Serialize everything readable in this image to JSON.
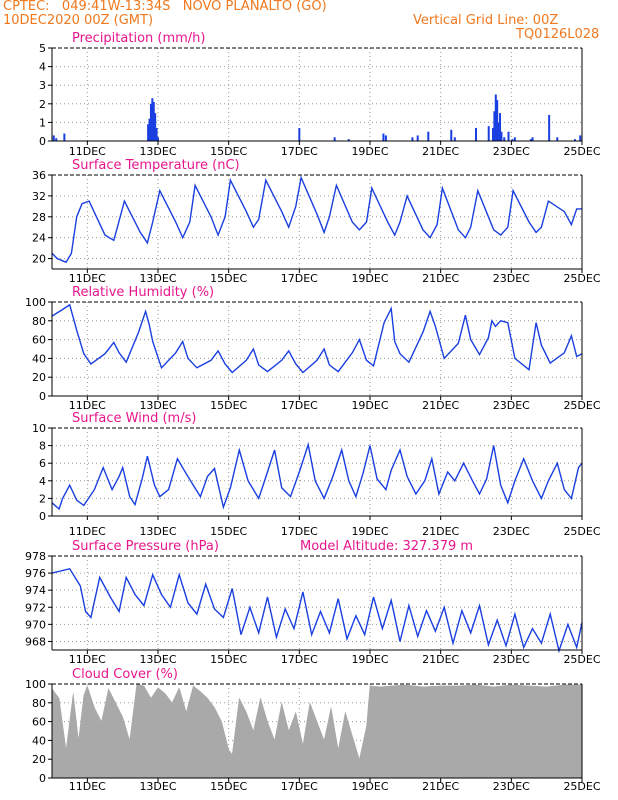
{
  "header": {
    "line1_left": "CPTEC:   049:41W-13:34S   NOVO PLANALTO (GO)",
    "line2_left": "10DEC2020 00Z (GMT)",
    "line2_right": "Vertical Grid Line: 00Z",
    "line3_right": "TQ0126L028"
  },
  "colors": {
    "header": "#f0781e",
    "title": "#e8168c",
    "line": "#1a3fe0",
    "bar": "#1a3fe0",
    "cloud": "#a9a9a9",
    "grid": "#999999"
  },
  "x_axis": {
    "ticks": [
      "11DEC",
      "13DEC",
      "15DEC",
      "17DEC",
      "19DEC",
      "21DEC",
      "23DEC",
      "25DEC"
    ],
    "tick_days": [
      1,
      3,
      5,
      7,
      9,
      11,
      13,
      15
    ],
    "start_date": "10DEC2020 00Z",
    "end_date": "25DEC2020 00Z"
  },
  "chart_data": [
    {
      "type": "bar",
      "title": "Precipitation (mm/h)",
      "ylim": [
        0,
        5
      ],
      "yticks": [
        "0",
        "1",
        "2",
        "3",
        "4",
        "5"
      ],
      "x": [
        0.05,
        0.12,
        0.35,
        2.72,
        2.76,
        2.8,
        2.84,
        2.88,
        2.92,
        2.96,
        3.0,
        7.0,
        8.0,
        8.4,
        9.38,
        9.45,
        10.2,
        10.35,
        10.65,
        11.3,
        11.4,
        12.0,
        12.36,
        12.48,
        12.52,
        12.56,
        12.6,
        12.64,
        12.68,
        12.72,
        12.8,
        12.92,
        13.03,
        13.1,
        13.55,
        13.6,
        14.07,
        14.3,
        14.8,
        14.95
      ],
      "values": [
        0.3,
        0.15,
        0.4,
        0.9,
        1.2,
        2.0,
        2.3,
        2.1,
        1.5,
        0.7,
        0.2,
        0.7,
        0.2,
        0.1,
        0.4,
        0.3,
        0.2,
        0.3,
        0.5,
        0.6,
        0.2,
        0.7,
        0.8,
        0.7,
        1.6,
        2.5,
        2.2,
        1.0,
        1.5,
        0.5,
        0.2,
        0.5,
        0.1,
        0.2,
        0.1,
        0.2,
        1.4,
        0.2,
        0.1,
        0.3
      ]
    },
    {
      "type": "line",
      "title": "Surface Temperature (nC)",
      "ylim": [
        18,
        36
      ],
      "yticks": [
        "20",
        "24",
        "28",
        "32",
        "36"
      ],
      "x": [
        0,
        0.15,
        0.4,
        0.55,
        0.7,
        0.85,
        1.05,
        1.5,
        1.75,
        1.85,
        2.05,
        2.5,
        2.7,
        2.85,
        3.05,
        3.5,
        3.7,
        3.9,
        4.05,
        4.5,
        4.7,
        4.9,
        5.05,
        5.5,
        5.7,
        5.85,
        6.05,
        6.5,
        6.7,
        6.9,
        7.05,
        7.5,
        7.7,
        7.85,
        8.05,
        8.5,
        8.7,
        8.9,
        9.05,
        9.5,
        9.7,
        9.85,
        10.05,
        10.5,
        10.7,
        10.9,
        11.05,
        11.5,
        11.7,
        11.85,
        12.05,
        12.5,
        12.7,
        12.9,
        13.05,
        13.5,
        13.7,
        13.85,
        14.05,
        14.5,
        14.7,
        14.85,
        15.0
      ],
      "values": [
        21,
        20,
        19.3,
        21,
        28,
        30.5,
        31,
        24.5,
        23.5,
        26,
        31,
        25,
        23,
        27,
        33,
        27,
        24,
        27,
        34,
        28,
        24.5,
        28,
        35,
        29,
        26,
        27.5,
        35,
        29,
        26,
        30,
        35.5,
        28.5,
        25,
        28,
        34,
        27,
        25.5,
        27,
        33.5,
        27,
        24.5,
        27,
        32,
        25.5,
        24,
        26.5,
        33.5,
        25.5,
        24,
        26,
        33,
        25.5,
        24.5,
        26,
        33,
        27,
        25,
        26,
        31,
        29,
        26.5,
        29.5,
        29.5
      ]
    },
    {
      "type": "line",
      "title": "Relative Humidity (%)",
      "ylim": [
        0,
        100
      ],
      "yticks": [
        "0",
        "20",
        "40",
        "60",
        "80",
        "100"
      ],
      "x": [
        0,
        0.3,
        0.5,
        0.7,
        0.9,
        1.1,
        1.5,
        1.75,
        1.9,
        2.1,
        2.45,
        2.65,
        2.75,
        2.85,
        3.1,
        3.5,
        3.7,
        3.85,
        4.1,
        4.5,
        4.7,
        4.9,
        5.1,
        5.5,
        5.7,
        5.85,
        6.1,
        6.5,
        6.7,
        6.9,
        7.1,
        7.5,
        7.7,
        7.85,
        8.1,
        8.5,
        8.7,
        8.9,
        9.1,
        9.4,
        9.6,
        9.7,
        9.85,
        10.1,
        10.5,
        10.7,
        10.85,
        11.1,
        11.5,
        11.7,
        11.85,
        12.1,
        12.35,
        12.45,
        12.55,
        12.7,
        12.9,
        13.1,
        13.5,
        13.7,
        13.85,
        14.1,
        14.5,
        14.7,
        14.85,
        15.0
      ],
      "values": [
        85,
        92,
        97,
        70,
        45,
        34,
        45,
        57,
        46,
        36,
        68,
        90,
        76,
        58,
        30,
        46,
        58,
        40,
        30,
        38,
        48,
        34,
        25,
        38,
        50,
        33,
        26,
        38,
        48,
        34,
        25,
        38,
        50,
        33,
        26,
        46,
        60,
        38,
        32,
        78,
        93,
        58,
        45,
        36,
        68,
        90,
        74,
        40,
        56,
        86,
        60,
        44,
        62,
        80,
        74,
        80,
        78,
        40,
        28,
        78,
        54,
        35,
        46,
        64,
        42,
        45
      ]
    },
    {
      "type": "line",
      "title": "Surface Wind (m/s)",
      "ylim": [
        0,
        10
      ],
      "yticks": [
        "0",
        "2",
        "4",
        "6",
        "8",
        "10"
      ],
      "x": [
        0,
        0.2,
        0.3,
        0.5,
        0.7,
        0.9,
        1.2,
        1.45,
        1.7,
        1.9,
        2.0,
        2.2,
        2.35,
        2.55,
        2.7,
        2.9,
        3.05,
        3.3,
        3.55,
        3.8,
        4.0,
        4.2,
        4.4,
        4.6,
        4.85,
        5.05,
        5.3,
        5.55,
        5.85,
        6.0,
        6.3,
        6.5,
        6.75,
        7.0,
        7.25,
        7.45,
        7.7,
        7.95,
        8.2,
        8.4,
        8.6,
        8.8,
        9.0,
        9.2,
        9.45,
        9.6,
        9.85,
        10.05,
        10.3,
        10.55,
        10.75,
        10.95,
        11.2,
        11.4,
        11.65,
        11.9,
        12.1,
        12.3,
        12.5,
        12.7,
        12.9,
        13.1,
        13.35,
        13.6,
        13.85,
        14.05,
        14.3,
        14.5,
        14.7,
        14.9,
        15.0
      ],
      "values": [
        1.5,
        0.8,
        2.0,
        3.5,
        1.8,
        1.2,
        3.0,
        5.5,
        3.0,
        4.5,
        5.5,
        2.2,
        1.3,
        4.2,
        6.8,
        3.5,
        2.2,
        3.0,
        6.5,
        4.8,
        3.5,
        2.2,
        4.5,
        5.4,
        1.0,
        3.2,
        7.5,
        4.0,
        2.0,
        3.8,
        7.5,
        3.2,
        2.2,
        5.0,
        8.1,
        4.0,
        2.0,
        4.5,
        7.5,
        4.0,
        2.2,
        4.8,
        8.0,
        4.2,
        3.0,
        5.2,
        7.5,
        4.5,
        2.5,
        4.0,
        6.5,
        2.5,
        5.0,
        4.0,
        6.0,
        4.0,
        2.5,
        4.2,
        8.0,
        3.5,
        1.5,
        4.0,
        6.5,
        4.0,
        2.0,
        4.0,
        6.0,
        3.0,
        2.0,
        5.5,
        6.0
      ]
    },
    {
      "type": "line",
      "title": "Surface Pressure (hPa)",
      "annotation": "Model Altitude: 327.379 m",
      "ylim": [
        967,
        978
      ],
      "yticks": [
        "968",
        "970",
        "972",
        "974",
        "976",
        "978"
      ],
      "x": [
        0,
        0.3,
        0.5,
        0.8,
        0.95,
        1.1,
        1.35,
        1.65,
        1.9,
        2.1,
        2.35,
        2.6,
        2.85,
        3.1,
        3.35,
        3.6,
        3.85,
        4.1,
        4.35,
        4.6,
        4.85,
        5.1,
        5.35,
        5.6,
        5.85,
        6.1,
        6.35,
        6.6,
        6.85,
        7.1,
        7.35,
        7.6,
        7.85,
        8.1,
        8.35,
        8.6,
        8.85,
        9.1,
        9.35,
        9.6,
        9.85,
        10.1,
        10.35,
        10.6,
        10.85,
        11.1,
        11.35,
        11.6,
        11.85,
        12.1,
        12.35,
        12.6,
        12.85,
        13.1,
        13.35,
        13.6,
        13.85,
        14.1,
        14.35,
        14.6,
        14.85,
        15.0
      ],
      "values": [
        976,
        976.3,
        976.5,
        974.5,
        971.5,
        970.8,
        975.5,
        973.2,
        971.5,
        975.5,
        973.5,
        972.2,
        975.8,
        973.5,
        972.0,
        975.8,
        972.5,
        971.2,
        974.7,
        971.8,
        970.8,
        974.2,
        968.8,
        972.0,
        969.0,
        973.2,
        968.5,
        971.8,
        969.5,
        973.8,
        968.8,
        971.5,
        969.0,
        973.0,
        968.3,
        971.0,
        968.8,
        973.2,
        969.5,
        972.8,
        968.0,
        972.2,
        968.6,
        971.6,
        969.2,
        972.0,
        967.8,
        971.6,
        969.0,
        972.2,
        967.6,
        970.5,
        967.5,
        971.2,
        967.3,
        969.5,
        967.8,
        971.2,
        966.9,
        970.0,
        967.3,
        970.2
      ]
    },
    {
      "type": "area",
      "title": "Cloud Cover (%)",
      "ylim": [
        0,
        100
      ],
      "yticks": [
        "0",
        "20",
        "40",
        "60",
        "80",
        "100"
      ],
      "x": [
        0,
        0.2,
        0.4,
        0.6,
        0.75,
        0.9,
        1.0,
        1.2,
        1.4,
        1.6,
        1.8,
        2.0,
        2.2,
        2.4,
        2.6,
        2.8,
        3.0,
        3.2,
        3.4,
        3.6,
        3.8,
        4.0,
        4.2,
        4.4,
        4.6,
        4.8,
        5.0,
        5.1,
        5.3,
        5.5,
        5.7,
        5.9,
        6.1,
        6.3,
        6.5,
        6.7,
        6.9,
        7.1,
        7.3,
        7.5,
        7.7,
        7.9,
        8.1,
        8.3,
        8.5,
        8.7,
        8.9,
        9.0,
        9.3,
        9.6,
        10.0,
        10.5,
        11.0,
        11.5,
        12.0,
        12.5,
        13.0,
        13.5,
        14.0,
        14.5,
        15.0
      ],
      "values": [
        95,
        85,
        30,
        90,
        40,
        88,
        98,
        75,
        60,
        95,
        80,
        65,
        40,
        100,
        98,
        85,
        96,
        90,
        80,
        96,
        70,
        98,
        92,
        85,
        75,
        60,
        30,
        25,
        85,
        70,
        50,
        85,
        60,
        40,
        80,
        50,
        70,
        35,
        80,
        60,
        40,
        75,
        30,
        70,
        45,
        20,
        55,
        98,
        97,
        98,
        99,
        97,
        98,
        98,
        99,
        97,
        99,
        98,
        97,
        99,
        99
      ]
    }
  ]
}
